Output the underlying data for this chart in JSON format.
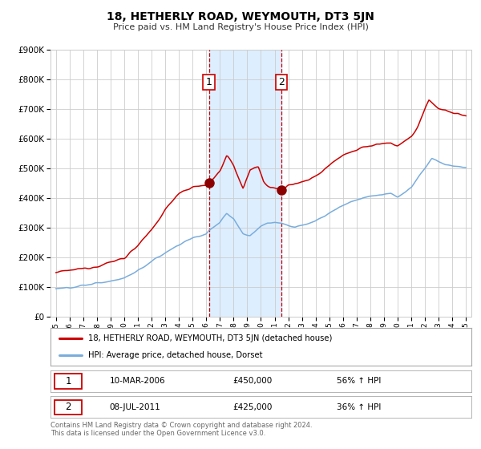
{
  "title": "18, HETHERLY ROAD, WEYMOUTH, DT3 5JN",
  "subtitle": "Price paid vs. HM Land Registry's House Price Index (HPI)",
  "legend_line1": "18, HETHERLY ROAD, WEYMOUTH, DT3 5JN (detached house)",
  "legend_line2": "HPI: Average price, detached house, Dorset",
  "footer": "Contains HM Land Registry data © Crown copyright and database right 2024.\nThis data is licensed under the Open Government Licence v3.0.",
  "transaction1": {
    "label": "1",
    "date": "10-MAR-2006",
    "price": "£450,000",
    "hpi": "56% ↑ HPI"
  },
  "transaction2": {
    "label": "2",
    "date": "08-JUL-2011",
    "price": "£425,000",
    "hpi": "36% ↑ HPI"
  },
  "purchase1_year": 2006.19,
  "purchase1_value": 450000,
  "purchase2_year": 2011.52,
  "purchase2_value": 425000,
  "red_line_color": "#cc0000",
  "blue_line_color": "#7aaddc",
  "marker_color": "#8b0000",
  "vline1_color": "#cc0000",
  "vline2_color": "#cc0000",
  "shade_color": "#ddeeff",
  "grid_color": "#cccccc",
  "bg_color": "#ffffff",
  "ylim": [
    0,
    900000
  ],
  "yticks": [
    0,
    100000,
    200000,
    300000,
    400000,
    500000,
    600000,
    700000,
    800000,
    900000
  ],
  "xlabel_years": [
    "1995",
    "1996",
    "1997",
    "1998",
    "1999",
    "2000",
    "2001",
    "2002",
    "2003",
    "2004",
    "2005",
    "2006",
    "2007",
    "2008",
    "2009",
    "2010",
    "2011",
    "2012",
    "2013",
    "2014",
    "2015",
    "2016",
    "2017",
    "2018",
    "2019",
    "2020",
    "2021",
    "2022",
    "2023",
    "2024",
    "2025"
  ],
  "xlim": [
    1994.6,
    2025.4
  ]
}
